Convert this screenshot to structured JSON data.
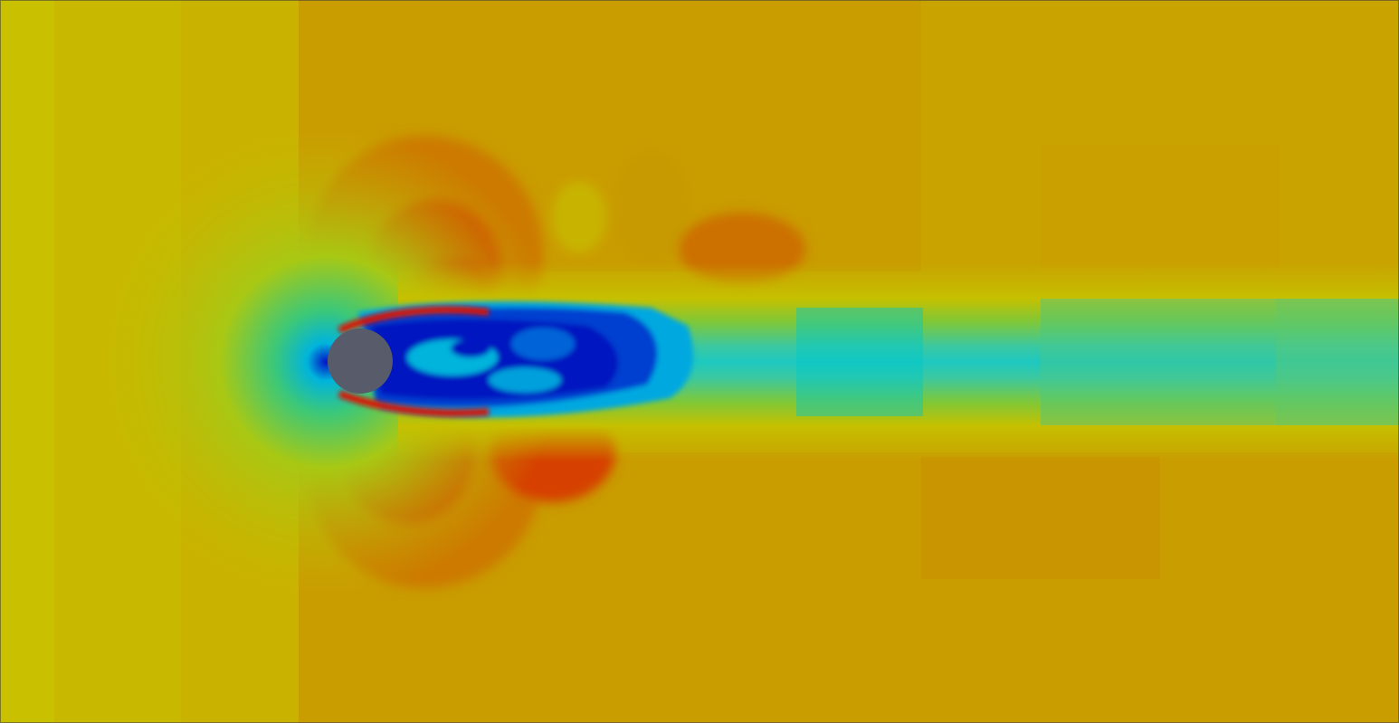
{
  "view": {
    "colormap": "jet",
    "background_color": "#c6b900",
    "obstacle_color": "#585b6a",
    "border_color": "#3c3c3c"
  },
  "scene": {
    "obstacle_shape": "circle"
  }
}
